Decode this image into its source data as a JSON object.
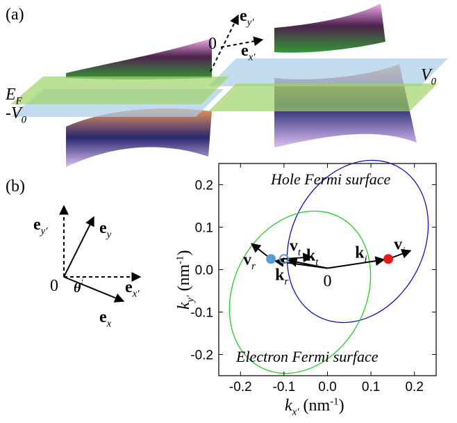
{
  "panel_a": {
    "label": "(a)",
    "ef": {
      "main": "E",
      "sub": "F"
    },
    "neg_v0": {
      "main": "-V",
      "sub": "0"
    },
    "v0": {
      "main": "V",
      "sub": "0"
    },
    "axis_y": {
      "main": "e",
      "sub": "y′"
    },
    "axis_x": {
      "main": "e",
      "sub": "x′"
    },
    "origin": "0"
  },
  "panel_b": {
    "label": "(b)",
    "ey_prime": {
      "main": "e",
      "sub": "y′"
    },
    "ey": {
      "main": "e",
      "sub": "y"
    },
    "ex_prime": {
      "main": "e",
      "sub": "x′"
    },
    "ex": {
      "main": "e",
      "sub": "x"
    },
    "origin": "0",
    "theta": "θ"
  },
  "chart_data": {
    "type": "scatter",
    "xlim": [
      -0.25,
      0.25
    ],
    "ylim": [
      -0.25,
      0.25
    ],
    "xticks": [
      -0.2,
      -0.1,
      {
        "value": 0,
        "label": "0.0"
      },
      0.1,
      0.2
    ],
    "yticks": [
      -0.2,
      -0.1,
      {
        "value": 0,
        "label": "0.0"
      },
      0.1,
      0.2
    ],
    "x_label": {
      "main": "k",
      "sub": "x′",
      "unit": " (nm",
      "sup": "-1",
      "close": ")"
    },
    "y_label": {
      "main": "k",
      "sub": "y′",
      "unit": " (nm",
      "sup": "-1",
      "close": ")"
    },
    "hole_label": "Hole Fermi surface",
    "electron_label": "Electron Fermi surface",
    "origin": "0",
    "series": [
      {
        "color": "#e41a1c",
        "x": [
          0.14
        ],
        "y": [
          0.025
        ]
      },
      {
        "color": "#5b9bd5",
        "x": [
          -0.13
        ],
        "y": [
          0.025
        ]
      },
      {
        "color": "none",
        "x": [
          -0.1
        ],
        "y": [
          0.025
        ]
      }
    ],
    "vectors": {
      "vi": {
        "main": "v",
        "sub": "i"
      },
      "ki": {
        "main": "k",
        "sub": "i"
      },
      "vt": {
        "main": "v",
        "sub": "t"
      },
      "kt": {
        "main": "k",
        "sub": "t"
      },
      "vr": {
        "main": "v",
        "sub": "r"
      },
      "kr": {
        "main": "k",
        "sub": "r"
      }
    }
  }
}
